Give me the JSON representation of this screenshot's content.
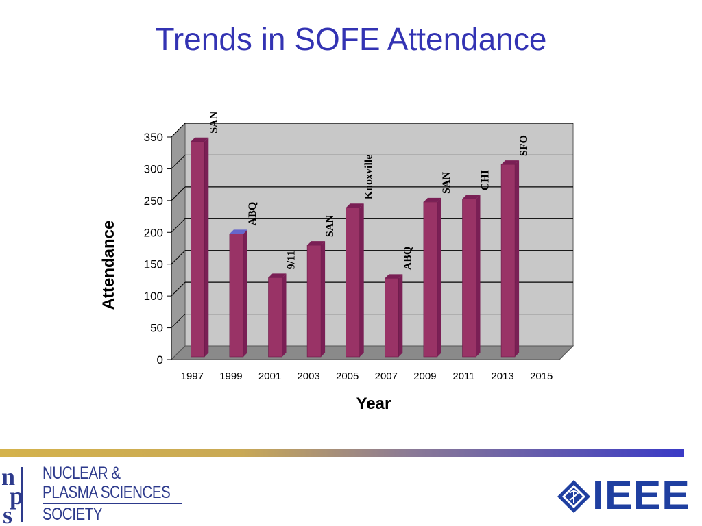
{
  "title": "Trends in SOFE Attendance",
  "chart_data": {
    "type": "bar",
    "categories": [
      "1997",
      "1999",
      "2001",
      "2003",
      "2005",
      "2007",
      "2009",
      "2011",
      "2013",
      "2015"
    ],
    "values": [
      346,
      201,
      132,
      183,
      242,
      131,
      251,
      256,
      310,
      null
    ],
    "bar_labels": [
      "SAN",
      "ABQ",
      "9/11",
      "SAN",
      "Knoxville",
      "ABQ",
      "SAN",
      "CHI",
      "SFO",
      ""
    ],
    "ylim": [
      0,
      350
    ],
    "yticks": [
      "0",
      "50",
      "100",
      "150",
      "200",
      "250",
      "300",
      "350"
    ],
    "xlabel": "Year",
    "ylabel": "Attendance",
    "grid": true,
    "colors": {
      "bar": "#993366",
      "bar_top": "#7a1f55",
      "bar_top_highlight": "#6666cc",
      "wall": "#c8c8c8"
    }
  },
  "footer": {
    "society_lines": [
      "NUCLEAR &",
      "PLASMA SCIENCES",
      "SOCIETY"
    ],
    "ieee": "IEEE"
  }
}
